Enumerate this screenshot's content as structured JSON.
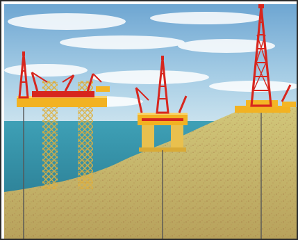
{
  "image": {
    "kind": "illustration",
    "subject": "offshore-drilling-rigs",
    "rigs": [
      {
        "type": "jack-up"
      },
      {
        "type": "semi-submersible"
      },
      {
        "type": "land-rig"
      }
    ]
  },
  "colors": {
    "sky_top": "#7fb0d6",
    "sky_bottom": "#b9d8ea",
    "sea": "#3f9bb0",
    "sea_deep": "#2f8aa1",
    "land": "#c8b86a",
    "land_dark": "#9b7f3f",
    "rig_red": "#d7261e",
    "deck_yellow": "#f4b526",
    "leg_yellow": "#e9c04e",
    "drill_line": "#555555",
    "frame": "#2b2b2b"
  }
}
